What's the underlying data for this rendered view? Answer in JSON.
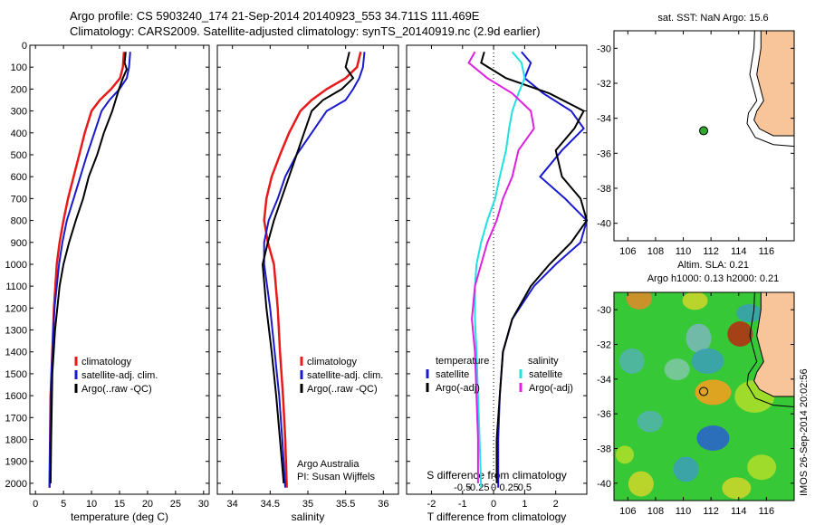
{
  "header": {
    "line1": "Argo profile: CS 5903240_174 21-Sep-2014 20140923_553 34.711S 111.469E",
    "line2": "Climatology: CARS2009. Satellite-adjusted climatology: synTS_20140919.nc (2.9d earlier)"
  },
  "side_text": "IMOS 26-Sep-2014 20:02:56",
  "colors": {
    "climatology": "#e61a1a",
    "satellite": "#1a1acc",
    "argo": "#000000",
    "satellite_s": "#20e0e0",
    "argo_s": "#e020e0",
    "land": "#f8c49a",
    "float": "#2ea82e"
  },
  "chart_data": [
    {
      "type": "line",
      "xlabel": "temperature (deg C)",
      "xlim": [
        -1,
        31
      ],
      "xticks": [
        0,
        5,
        10,
        15,
        20,
        25,
        30
      ],
      "ylim": [
        2050,
        0
      ],
      "yticks": [
        0,
        100,
        200,
        300,
        400,
        500,
        600,
        700,
        800,
        900,
        1000,
        1100,
        1200,
        1300,
        1400,
        1500,
        1600,
        1700,
        1800,
        1900,
        2000
      ],
      "legend": [
        "climatology",
        "satellite-adj. clim.",
        "Argo(..raw -QC)"
      ],
      "series": [
        {
          "name": "climatology",
          "x": [
            15.8,
            15.6,
            15.1,
            13.5,
            11.5,
            10.0,
            8.8,
            7.8,
            6.8,
            5.8,
            5.0,
            4.3,
            3.8,
            3.3,
            3.0,
            2.7,
            2.6,
            2.5
          ],
          "y": [
            30,
            100,
            150,
            200,
            250,
            300,
            400,
            500,
            600,
            700,
            800,
            900,
            1000,
            1200,
            1400,
            1600,
            1800,
            2020
          ]
        },
        {
          "name": "satellite-adj. clim.",
          "x": [
            16.9,
            16.7,
            16.3,
            15.0,
            13.2,
            11.8,
            10.5,
            9.2,
            8.0,
            6.8,
            5.6,
            4.8,
            4.2,
            3.4,
            3.0,
            2.7,
            2.6,
            2.5
          ],
          "y": [
            30,
            100,
            150,
            200,
            250,
            300,
            400,
            500,
            600,
            700,
            800,
            900,
            1000,
            1200,
            1400,
            1600,
            1800,
            2020
          ]
        },
        {
          "name": "Argo(..raw -QC)",
          "x": [
            16.1,
            15.9,
            16.3,
            15.6,
            14.9,
            13.7,
            12.2,
            11.0,
            9.5,
            8.5,
            7.2,
            6.0,
            5.0,
            4.3,
            3.5,
            3.0,
            2.8,
            2.7
          ],
          "y": [
            30,
            80,
            110,
            150,
            200,
            300,
            400,
            500,
            600,
            700,
            800,
            900,
            1000,
            1100,
            1300,
            1500,
            1800,
            2000
          ]
        }
      ]
    },
    {
      "type": "line",
      "xlabel": "salinity",
      "xlim": [
        33.8,
        36.2
      ],
      "xticks": [
        34,
        34.5,
        35,
        35.5,
        36
      ],
      "ylim": [
        2050,
        0
      ],
      "legend": [
        "climatology",
        "satellite-adj. clim.",
        "Argo(..raw -QC)"
      ],
      "annotations": [
        "Argo Australia",
        "PI: Susan Wijffels"
      ],
      "series": [
        {
          "name": "climatology",
          "x": [
            35.7,
            35.65,
            35.5,
            35.25,
            35.05,
            34.9,
            34.75,
            34.63,
            34.52,
            34.45,
            34.42,
            34.47,
            34.55,
            34.6,
            34.63,
            34.67,
            34.7,
            34.72
          ],
          "y": [
            30,
            100,
            150,
            200,
            250,
            300,
            400,
            500,
            600,
            700,
            800,
            900,
            1000,
            1200,
            1400,
            1600,
            1800,
            2020
          ]
        },
        {
          "name": "satellite-adj. clim.",
          "x": [
            35.75,
            35.73,
            35.68,
            35.6,
            35.5,
            35.25,
            35.05,
            34.85,
            34.7,
            34.6,
            34.48,
            34.42,
            34.42,
            34.5,
            34.56,
            34.62,
            34.66,
            34.7
          ],
          "y": [
            30,
            100,
            150,
            200,
            250,
            300,
            400,
            500,
            600,
            700,
            800,
            900,
            1000,
            1200,
            1400,
            1600,
            1800,
            2020
          ]
        },
        {
          "name": "Argo(..raw -QC)",
          "x": [
            35.55,
            35.5,
            35.6,
            35.45,
            35.2,
            35.05,
            34.95,
            34.85,
            34.75,
            34.65,
            34.55,
            34.47,
            34.4,
            34.45,
            34.52,
            34.58,
            34.63,
            34.68
          ],
          "y": [
            30,
            100,
            150,
            200,
            250,
            300,
            400,
            500,
            600,
            700,
            800,
            900,
            1000,
            1200,
            1400,
            1600,
            1800,
            2000
          ]
        }
      ]
    },
    {
      "type": "line",
      "xlabel": "T difference from climatology",
      "xlabel2": "S difference from climatology",
      "xlim": [
        -2.8,
        3.0
      ],
      "xticks": [
        -2,
        -1,
        0,
        1,
        2
      ],
      "xticks2": [
        -0.5,
        -0.25,
        0,
        0.25,
        0.5
      ],
      "xticks2_labels": [
        "-0.5",
        "-0.25",
        "0",
        "0.25",
        "0.5"
      ],
      "ylim": [
        2050,
        0
      ],
      "legend_titles": [
        "temperature",
        "salinity"
      ],
      "legend": [
        "satellite",
        "Argo(-adj)",
        "satellite",
        "Argo(-adj)"
      ],
      "series": [
        {
          "name": "satellite",
          "group": "temperature",
          "x": [
            0.9,
            1.2,
            1.0,
            1.6,
            2.5,
            2.9,
            2.2,
            1.5,
            2.3,
            3.0,
            2.8,
            2.0,
            1.3,
            0.6,
            0.3,
            0.2,
            0.15,
            0.15
          ],
          "y": [
            30,
            80,
            150,
            220,
            300,
            380,
            480,
            600,
            700,
            800,
            900,
            1000,
            1100,
            1250,
            1400,
            1600,
            1800,
            2020
          ]
        },
        {
          "name": "Argo(-adj)",
          "group": "temperature",
          "x": [
            -0.3,
            -0.4,
            0.4,
            1.8,
            2.9,
            2.6,
            2.0,
            2.2,
            2.8,
            3.0,
            2.5,
            1.8,
            1.2,
            0.6,
            0.3,
            0.2,
            0.1,
            0.1
          ],
          "y": [
            30,
            80,
            150,
            220,
            300,
            380,
            480,
            600,
            700,
            800,
            900,
            1000,
            1100,
            1250,
            1400,
            1600,
            1800,
            2000
          ]
        },
        {
          "name": "satellite",
          "group": "salinity",
          "x": [
            0.6,
            0.9,
            1.0,
            0.8,
            0.6,
            0.5,
            0.4,
            0.2,
            0.05,
            -0.2,
            -0.4,
            -0.55,
            -0.6,
            -0.6,
            -0.55,
            -0.5,
            -0.45,
            -0.4
          ],
          "y": [
            30,
            80,
            150,
            220,
            300,
            380,
            480,
            600,
            700,
            800,
            900,
            1000,
            1100,
            1250,
            1400,
            1600,
            1800,
            2020
          ]
        },
        {
          "name": "Argo(-adj)",
          "group": "salinity",
          "x": [
            -0.6,
            -0.8,
            -0.2,
            0.6,
            1.2,
            1.3,
            0.8,
            0.6,
            0.3,
            0.1,
            -0.2,
            -0.4,
            -0.6,
            -0.7,
            -0.6,
            -0.55,
            -0.5,
            -0.5
          ],
          "y": [
            30,
            80,
            150,
            220,
            300,
            380,
            480,
            600,
            700,
            800,
            900,
            1000,
            1100,
            1250,
            1400,
            1600,
            1800,
            2000
          ]
        }
      ]
    },
    {
      "type": "map",
      "title": "sat. SST: NaN Argo: 15.6",
      "xlim": [
        105,
        118
      ],
      "ylim": [
        -41,
        -29
      ],
      "xticks": [
        106,
        108,
        110,
        112,
        114,
        116
      ],
      "yticks": [
        -30,
        -32,
        -34,
        -36,
        -38,
        -40
      ],
      "float_position": {
        "lon": 111.469,
        "lat": -34.711
      }
    },
    {
      "type": "heatmap",
      "title1": "Altim. SLA: 0.21",
      "title2": "Argo h1000: 0.13 h2000: 0.21",
      "xlim": [
        105,
        118
      ],
      "ylim": [
        -41,
        -29
      ],
      "xticks": [
        106,
        108,
        110,
        112,
        114,
        116
      ],
      "yticks": [
        -30,
        -32,
        -34,
        -36,
        -38,
        -40
      ],
      "float_position": {
        "lon": 111.469,
        "lat": -34.711
      }
    }
  ]
}
